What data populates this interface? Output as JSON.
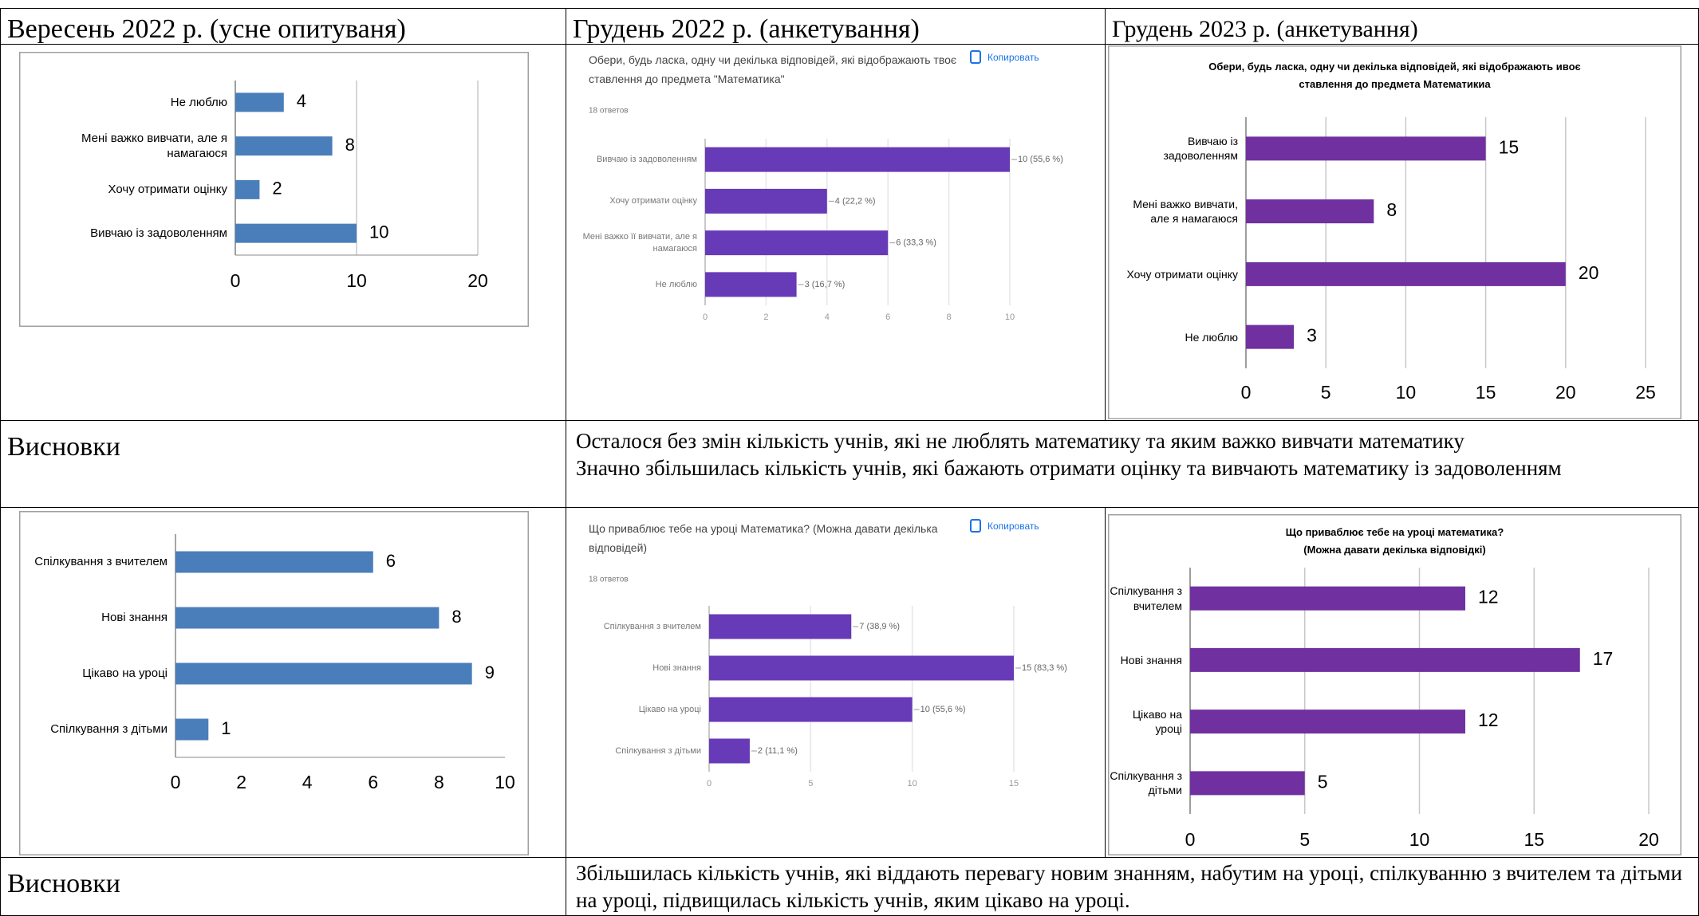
{
  "table": {
    "header": [
      "Вересень 2022 р. (усне опитуваня)",
      "Грудень 2022 р. (анкетування)",
      "Грудень 2023 р. (анкетування)"
    ],
    "conclusions": [
      {
        "label": "Висновки",
        "text": [
          "Осталося без змін  кількість учнів, які не люблять математику та яким важко вивчати математику",
          "Значно збільшилась кількість учнів, які бажають отримати оцінку та вивчають математику із задоволенням"
        ]
      },
      {
        "label": "Висновки",
        "text": [
          "Збільшилась кількість учнів, які віддають перевагу новим знанням, набутим на уроці, спілкуванню з вчителем та дітьми на уроці, підвищилась кількість учнів, яким цікаво на уроці."
        ]
      }
    ]
  },
  "chart_data": [
    {
      "type": "bar",
      "categories": [
        "Не люблю",
        "Мені важко вивчати, але я намагаюся",
        "Хочу отримати оцінку",
        "Вивчаю із задоволенням"
      ],
      "values": [
        4,
        8,
        2,
        10
      ],
      "color": "#4a7ebb",
      "xlim": [
        0,
        20
      ],
      "xticks": [
        0,
        10,
        20
      ],
      "grid": true
    },
    {
      "type": "bar",
      "title": "Обери, будь ласка, одну чи декілька відповідей, які відображають твоє ставлення до предмета \"Математика\"",
      "subtitle": "18 ответов",
      "button": "Копировать",
      "categories": [
        "Вивчаю із задоволенням",
        "Хочу отримати оцінку",
        "Мені важко її вивчати, але я намагаюся",
        "Не люблю"
      ],
      "values": [
        10,
        4,
        6,
        3
      ],
      "value_labels": [
        "10 (55,6 %)",
        "4 (22,2 %)",
        "6 (33,3 %)",
        "3 (16,7 %)"
      ],
      "color": "#673ab7",
      "xlim": [
        0,
        10
      ],
      "xticks": [
        0,
        2,
        4,
        6,
        8,
        10
      ],
      "grid": true
    },
    {
      "type": "bar",
      "title": "Обери, будь ласка, одну чи декілька відповідей, які відображають ивоє ставлення до  предмета Математикиа",
      "categories": [
        "Вивчаю із задоволенням",
        "Мені важко вивчати, але я намагаюся",
        "Хочу отримати оцінку",
        "Не люблю"
      ],
      "values": [
        15,
        8,
        20,
        3
      ],
      "color": "#7030a0",
      "xlim": [
        0,
        25
      ],
      "xticks": [
        0,
        5,
        10,
        15,
        20,
        25
      ],
      "grid": true
    },
    {
      "type": "bar",
      "categories": [
        "Спілкування з вчителем",
        "Нові знання",
        "Цікаво на уроці",
        "Спілкування з дітьми"
      ],
      "values": [
        6,
        8,
        9,
        1
      ],
      "color": "#4a7ebb",
      "xlim": [
        0,
        10
      ],
      "xticks": [
        0,
        2,
        4,
        6,
        8,
        10
      ],
      "grid": false
    },
    {
      "type": "bar",
      "title": "Що приваблює тебе на уроці Математика? (Можна давати декілька відповідей)",
      "subtitle": "18 ответов",
      "button": "Копировать",
      "categories": [
        "Спілкування з вчителем",
        "Нові знання",
        "Цікаво на уроці",
        "Спілкування з дітьми"
      ],
      "values": [
        7,
        15,
        10,
        2
      ],
      "value_labels": [
        "7 (38,9 %)",
        "15 (83,3 %)",
        "10 (55,6 %)",
        "2 (11,1 %)"
      ],
      "color": "#673ab7",
      "xlim": [
        0,
        15
      ],
      "xticks": [
        0,
        5,
        10,
        15
      ],
      "grid": true
    },
    {
      "type": "bar",
      "title": "Що  приваблює тебе на уроці математика?",
      "subtitle": "(Можна давати декілька відповідкі)",
      "categories": [
        "Спілкування з вчителем",
        "Нові знання",
        "Цікаво на уроці",
        "Спілкування з дітьми"
      ],
      "values": [
        12,
        17,
        12,
        5
      ],
      "color": "#7030a0",
      "xlim": [
        0,
        20
      ],
      "xticks": [
        0,
        5,
        10,
        15,
        20
      ],
      "grid": true
    }
  ]
}
